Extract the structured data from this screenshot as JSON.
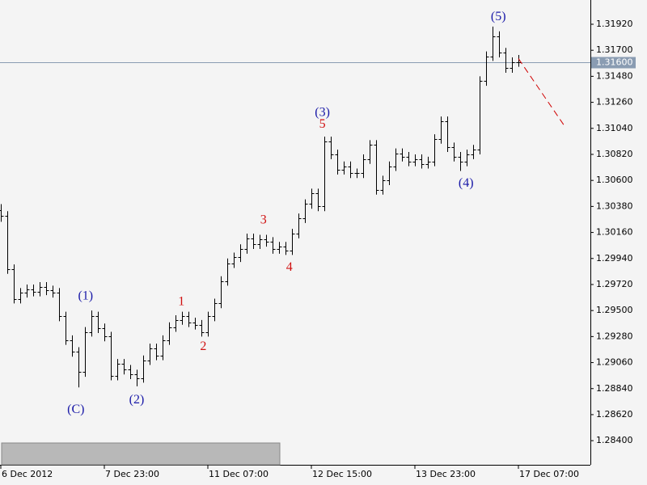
{
  "chart_data": {
    "type": "ohlc",
    "bar_color": "#000000",
    "background": "#f4f4f4",
    "xlim": [
      0,
      91
    ],
    "ylim": [
      1.28196,
      1.32125
    ],
    "xticks": [
      {
        "value": 0,
        "label": "6 Dec 2012"
      },
      {
        "value": 16,
        "label": "7 Dec 23:00"
      },
      {
        "value": 32,
        "label": "11 Dec 07:00"
      },
      {
        "value": 48,
        "label": "12 Dec 15:00"
      },
      {
        "value": 64,
        "label": "13 Dec 23:00"
      },
      {
        "value": 80,
        "label": "17 Dec 07:00"
      }
    ],
    "yticks": [
      {
        "value": 1.284,
        "label": "1.28400"
      },
      {
        "value": 1.2862,
        "label": "1.28620"
      },
      {
        "value": 1.2884,
        "label": "1.28840"
      },
      {
        "value": 1.2906,
        "label": "1.29060"
      },
      {
        "value": 1.2928,
        "label": "1.29280"
      },
      {
        "value": 1.295,
        "label": "1.29500"
      },
      {
        "value": 1.2972,
        "label": "1.29720"
      },
      {
        "value": 1.2994,
        "label": "1.29940"
      },
      {
        "value": 1.3016,
        "label": "1.30160"
      },
      {
        "value": 1.3038,
        "label": "1.30380"
      },
      {
        "value": 1.306,
        "label": "1.30600"
      },
      {
        "value": 1.3082,
        "label": "1.30820"
      },
      {
        "value": 1.3104,
        "label": "1.31040"
      },
      {
        "value": 1.3126,
        "label": "1.31260"
      },
      {
        "value": 1.3148,
        "label": "1.31480"
      },
      {
        "value": 1.317,
        "label": "1.31700"
      },
      {
        "value": 1.3192,
        "label": "1.31920"
      }
    ],
    "current_price": {
      "value": 1.316,
      "label": "1.31600",
      "color": "#8a9cb2"
    },
    "forecast": {
      "x": [
        80,
        87.25
      ],
      "y": [
        1.3163,
        1.3105
      ],
      "color": "#d00000"
    },
    "ohlc": [
      [
        1.3035,
        1.304,
        1.3025,
        1.303
      ],
      [
        1.303,
        1.3034,
        1.2981,
        1.2985
      ],
      [
        1.2985,
        1.2989,
        1.2956,
        1.296
      ],
      [
        1.296,
        1.2969,
        1.2956,
        1.2965
      ],
      [
        1.2965,
        1.2972,
        1.2961,
        1.2968
      ],
      [
        1.2968,
        1.2972,
        1.2962,
        1.2966
      ],
      [
        1.2966,
        1.2974,
        1.2962,
        1.297
      ],
      [
        1.297,
        1.2974,
        1.2963,
        1.2967
      ],
      [
        1.2967,
        1.2971,
        1.2961,
        1.2965
      ],
      [
        1.2965,
        1.2969,
        1.2941,
        1.2945
      ],
      [
        1.2945,
        1.2949,
        1.2921,
        1.2925
      ],
      [
        1.2925,
        1.2929,
        1.2911,
        1.2915
      ],
      [
        1.2915,
        1.2919,
        1.2885,
        1.2898
      ],
      [
        1.2898,
        1.2936,
        1.2894,
        1.2932
      ],
      [
        1.2932,
        1.295,
        1.2928,
        1.2945
      ],
      [
        1.2945,
        1.2949,
        1.2931,
        1.2935
      ],
      [
        1.2935,
        1.2939,
        1.2924,
        1.2928
      ],
      [
        1.2928,
        1.2932,
        1.2891,
        1.2895
      ],
      [
        1.2895,
        1.2909,
        1.2891,
        1.2905
      ],
      [
        1.2905,
        1.2909,
        1.2896,
        1.29
      ],
      [
        1.29,
        1.2904,
        1.2892,
        1.2896
      ],
      [
        1.2896,
        1.29,
        1.2886,
        1.2893
      ],
      [
        1.2893,
        1.2912,
        1.2889,
        1.2908
      ],
      [
        1.2908,
        1.2922,
        1.2904,
        1.2918
      ],
      [
        1.2918,
        1.2922,
        1.2908,
        1.2912
      ],
      [
        1.2912,
        1.2929,
        1.2908,
        1.2925
      ],
      [
        1.2925,
        1.294,
        1.2921,
        1.2936
      ],
      [
        1.2936,
        1.2946,
        1.2932,
        1.2942
      ],
      [
        1.2942,
        1.2949,
        1.2938,
        1.2945
      ],
      [
        1.2945,
        1.2949,
        1.2936,
        1.294
      ],
      [
        1.294,
        1.2944,
        1.2934,
        1.2938
      ],
      [
        1.2938,
        1.2942,
        1.2928,
        1.2932
      ],
      [
        1.2932,
        1.2949,
        1.2928,
        1.2945
      ],
      [
        1.2945,
        1.296,
        1.2941,
        1.2956
      ],
      [
        1.2956,
        1.2979,
        1.2952,
        1.2975
      ],
      [
        1.2975,
        1.2994,
        1.2971,
        1.299
      ],
      [
        1.299,
        1.2999,
        1.2986,
        1.2995
      ],
      [
        1.2995,
        1.3006,
        1.2991,
        1.3002
      ],
      [
        1.3002,
        1.3015,
        1.2998,
        1.3011
      ],
      [
        1.3011,
        1.3015,
        1.3002,
        1.3006
      ],
      [
        1.3006,
        1.3014,
        1.3002,
        1.301
      ],
      [
        1.301,
        1.3014,
        1.3004,
        1.3008
      ],
      [
        1.3008,
        1.3012,
        1.2998,
        1.3002
      ],
      [
        1.3002,
        1.3008,
        1.2998,
        1.3004
      ],
      [
        1.3004,
        1.3008,
        1.2997,
        1.3001
      ],
      [
        1.3001,
        1.3019,
        1.2997,
        1.3015
      ],
      [
        1.3015,
        1.3032,
        1.3011,
        1.3028
      ],
      [
        1.3028,
        1.3044,
        1.3024,
        1.304
      ],
      [
        1.304,
        1.3053,
        1.3036,
        1.3049
      ],
      [
        1.3049,
        1.3053,
        1.3034,
        1.3038
      ],
      [
        1.3038,
        1.3097,
        1.3034,
        1.3093
      ],
      [
        1.3093,
        1.3097,
        1.3078,
        1.3082
      ],
      [
        1.3082,
        1.3086,
        1.3065,
        1.3069
      ],
      [
        1.3069,
        1.3076,
        1.3065,
        1.3072
      ],
      [
        1.3072,
        1.3076,
        1.3062,
        1.3066
      ],
      [
        1.3066,
        1.307,
        1.3062,
        1.3066
      ],
      [
        1.3066,
        1.3082,
        1.3062,
        1.3078
      ],
      [
        1.3078,
        1.3094,
        1.3074,
        1.309
      ],
      [
        1.309,
        1.3094,
        1.3048,
        1.3052
      ],
      [
        1.3052,
        1.3064,
        1.3048,
        1.306
      ],
      [
        1.306,
        1.3076,
        1.3056,
        1.3072
      ],
      [
        1.3072,
        1.3087,
        1.3068,
        1.3083
      ],
      [
        1.3083,
        1.3087,
        1.3076,
        1.308
      ],
      [
        1.308,
        1.3084,
        1.3072,
        1.3076
      ],
      [
        1.3076,
        1.3082,
        1.3072,
        1.3078
      ],
      [
        1.3078,
        1.3082,
        1.307,
        1.3074
      ],
      [
        1.3074,
        1.308,
        1.307,
        1.3076
      ],
      [
        1.3076,
        1.3099,
        1.3072,
        1.3095
      ],
      [
        1.3095,
        1.3114,
        1.3091,
        1.311
      ],
      [
        1.311,
        1.3114,
        1.3084,
        1.3088
      ],
      [
        1.3088,
        1.3092,
        1.3076,
        1.308
      ],
      [
        1.308,
        1.3084,
        1.3068,
        1.3076
      ],
      [
        1.3076,
        1.3086,
        1.3072,
        1.3082
      ],
      [
        1.3082,
        1.309,
        1.3078,
        1.3086
      ],
      [
        1.3086,
        1.3148,
        1.3082,
        1.3144
      ],
      [
        1.3144,
        1.3169,
        1.314,
        1.3165
      ],
      [
        1.3165,
        1.319,
        1.3161,
        1.3182
      ],
      [
        1.3182,
        1.3186,
        1.3164,
        1.3168
      ],
      [
        1.3168,
        1.3172,
        1.3151,
        1.3155
      ],
      [
        1.3155,
        1.3164,
        1.3151,
        1.316
      ],
      [
        1.316,
        1.3166,
        1.3156,
        1.316
      ]
    ],
    "annotations": [
      {
        "text": "(C)",
        "x": 11.6,
        "y": 1.2866,
        "color": "#1a1aa8"
      },
      {
        "text": "(1)",
        "x": 13.1,
        "y": 1.2962,
        "color": "#1a1aa8"
      },
      {
        "text": "(2)",
        "x": 21,
        "y": 1.2874,
        "color": "#1a1aa8"
      },
      {
        "text": "1",
        "x": 27.9,
        "y": 1.2957,
        "color": "#d01010"
      },
      {
        "text": "2",
        "x": 31.3,
        "y": 1.2919,
        "color": "#d01010"
      },
      {
        "text": "3",
        "x": 40.6,
        "y": 1.3026,
        "color": "#d01010"
      },
      {
        "text": "4",
        "x": 44.6,
        "y": 1.2986,
        "color": "#d01010"
      },
      {
        "text": "(3)",
        "x": 49.7,
        "y": 1.3117,
        "color": "#1a1aa8"
      },
      {
        "text": "5",
        "x": 49.7,
        "y": 1.3107,
        "color": "#d01010"
      },
      {
        "text": "(4)",
        "x": 71.9,
        "y": 1.3057,
        "color": "#1a1aa8"
      },
      {
        "text": "(5)",
        "x": 76.9,
        "y": 1.3198,
        "color": "#1a1aa8"
      }
    ]
  }
}
